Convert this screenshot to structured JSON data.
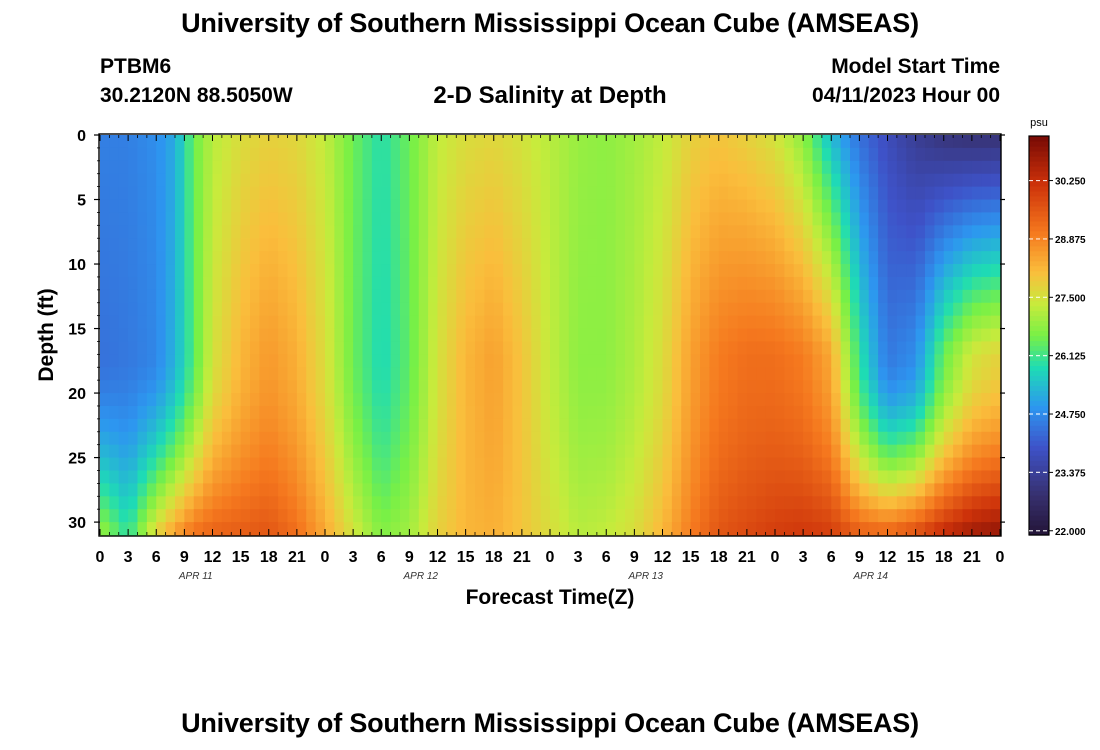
{
  "header": {
    "title": "University of Southern Mississippi Ocean Cube (AMSEAS)",
    "station": "PTBM6",
    "coords": "30.2120N  88.5050W",
    "subtitle": "2-D Salinity at Depth",
    "model_start_label": "Model Start Time",
    "model_start_value": "04/11/2023 Hour 00"
  },
  "footer": {
    "title": "University of Southern Mississippi Ocean Cube (AMSEAS)"
  },
  "chart_data": {
    "type": "heatmap",
    "title": "2-D Salinity at Depth",
    "xlabel": "Forecast Time(Z)",
    "ylabel": "Depth (ft)",
    "x_ticks": [
      "0",
      "3",
      "6",
      "9",
      "12",
      "15",
      "18",
      "21",
      "0",
      "3",
      "6",
      "9",
      "12",
      "15",
      "18",
      "21",
      "0",
      "3",
      "6",
      "9",
      "12",
      "15",
      "18",
      "21",
      "0",
      "3",
      "6",
      "9",
      "12",
      "15",
      "18",
      "21",
      "0"
    ],
    "x_range_hours": [
      0,
      96
    ],
    "date_labels": [
      {
        "label": "APR 11",
        "hour": 10
      },
      {
        "label": "APR 12",
        "hour": 34
      },
      {
        "label": "APR 13",
        "hour": 58
      },
      {
        "label": "APR 14",
        "hour": 82
      }
    ],
    "y_ticks": [
      "0",
      "5",
      "10",
      "15",
      "20",
      "25",
      "30"
    ],
    "y_range_ft": [
      0,
      31
    ],
    "y_inverted": true,
    "colorbar": {
      "unit": "psu",
      "range": [
        21.9,
        31.3
      ],
      "ticks": [
        "30.250",
        "28.875",
        "27.500",
        "26.125",
        "24.750",
        "23.375",
        "22.000"
      ]
    },
    "salinity_profiles": [
      {
        "hour": 0,
        "surface": 24.6,
        "mid": 24.4,
        "bottom": 27.0
      },
      {
        "hour": 3,
        "surface": 24.6,
        "mid": 24.5,
        "bottom": 26.0
      },
      {
        "hour": 6,
        "surface": 24.8,
        "mid": 24.7,
        "bottom": 27.8
      },
      {
        "hour": 8,
        "surface": 25.2,
        "mid": 25.3,
        "bottom": 28.6
      },
      {
        "hour": 10,
        "surface": 26.5,
        "mid": 26.3,
        "bottom": 29.2
      },
      {
        "hour": 12,
        "surface": 27.2,
        "mid": 27.5,
        "bottom": 29.4
      },
      {
        "hour": 15,
        "surface": 27.6,
        "mid": 28.2,
        "bottom": 29.5
      },
      {
        "hour": 18,
        "surface": 27.8,
        "mid": 28.6,
        "bottom": 29.6
      },
      {
        "hour": 21,
        "surface": 27.7,
        "mid": 28.3,
        "bottom": 29.2
      },
      {
        "hour": 24,
        "surface": 27.3,
        "mid": 27.6,
        "bottom": 28.4
      },
      {
        "hour": 27,
        "surface": 26.5,
        "mid": 26.5,
        "bottom": 27.5
      },
      {
        "hour": 30,
        "surface": 25.9,
        "mid": 25.8,
        "bottom": 26.7
      },
      {
        "hour": 33,
        "surface": 26.5,
        "mid": 26.4,
        "bottom": 27.0
      },
      {
        "hour": 36,
        "surface": 27.3,
        "mid": 27.5,
        "bottom": 27.8
      },
      {
        "hour": 39,
        "surface": 27.6,
        "mid": 28.2,
        "bottom": 28.2
      },
      {
        "hour": 42,
        "surface": 27.7,
        "mid": 28.5,
        "bottom": 28.3
      },
      {
        "hour": 45,
        "surface": 27.5,
        "mid": 28.0,
        "bottom": 28.0
      },
      {
        "hour": 48,
        "surface": 27.2,
        "mid": 27.3,
        "bottom": 27.6
      },
      {
        "hour": 51,
        "surface": 26.9,
        "mid": 26.8,
        "bottom": 27.2
      },
      {
        "hour": 54,
        "surface": 26.8,
        "mid": 26.8,
        "bottom": 27.3
      },
      {
        "hour": 57,
        "surface": 27.0,
        "mid": 27.1,
        "bottom": 27.6
      },
      {
        "hour": 60,
        "surface": 27.3,
        "mid": 27.6,
        "bottom": 28.2
      },
      {
        "hour": 63,
        "surface": 27.8,
        "mid": 28.5,
        "bottom": 29.0
      },
      {
        "hour": 66,
        "surface": 28.0,
        "mid": 29.0,
        "bottom": 29.6
      },
      {
        "hour": 69,
        "surface": 27.8,
        "mid": 29.2,
        "bottom": 29.8
      },
      {
        "hour": 72,
        "surface": 27.5,
        "mid": 29.2,
        "bottom": 30.0
      },
      {
        "hour": 75,
        "surface": 26.8,
        "mid": 29.0,
        "bottom": 30.1
      },
      {
        "hour": 78,
        "surface": 25.4,
        "mid": 28.4,
        "bottom": 30.0
      },
      {
        "hour": 81,
        "surface": 24.4,
        "mid": 26.0,
        "bottom": 29.5
      },
      {
        "hour": 84,
        "surface": 23.8,
        "mid": 24.5,
        "bottom": 29.4
      },
      {
        "hour": 87,
        "surface": 23.3,
        "mid": 24.8,
        "bottom": 29.8
      },
      {
        "hour": 90,
        "surface": 23.0,
        "mid": 26.5,
        "bottom": 30.4
      },
      {
        "hour": 93,
        "surface": 22.9,
        "mid": 27.5,
        "bottom": 30.8
      },
      {
        "hour": 96,
        "surface": 22.9,
        "mid": 27.8,
        "bottom": 31.0
      }
    ]
  }
}
